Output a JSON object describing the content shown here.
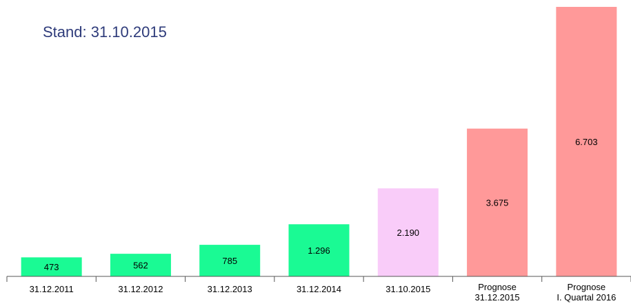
{
  "chart_data": {
    "type": "bar",
    "title": "Stand: 31.10.2015",
    "categories": [
      "31.12.2011",
      "31.12.2012",
      "31.12.2013",
      "31.12.2014",
      "31.10.2015",
      "Prognose\n31.12.2015",
      "Prognose\nI. Quartal 2016"
    ],
    "values": [
      473,
      562,
      785,
      1296,
      2190,
      3675,
      6703
    ],
    "value_labels": [
      "473",
      "562",
      "785",
      "1.296",
      "2.190",
      "3.675",
      "6.703"
    ],
    "colors": [
      "#1afa94",
      "#1afa94",
      "#1afa94",
      "#1afa94",
      "#f9ccf9",
      "#ff9999",
      "#ff9999"
    ]
  }
}
